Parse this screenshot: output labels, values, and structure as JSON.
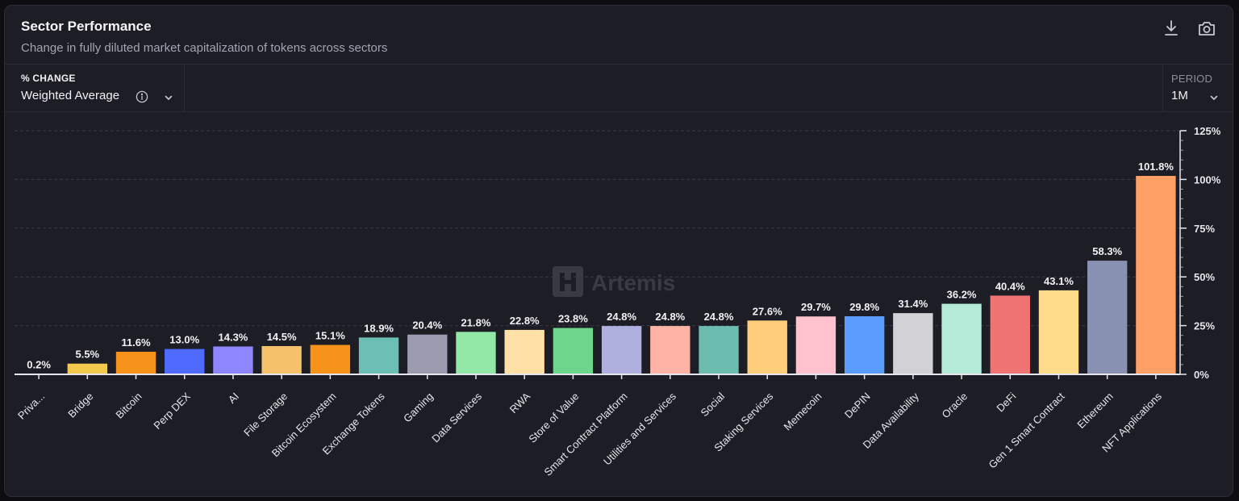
{
  "header": {
    "title": "Sector Performance",
    "subtitle": "Change in fully diluted market capitalization of tokens across sectors"
  },
  "controls": {
    "metric_label": "% CHANGE",
    "metric_value": "Weighted Average",
    "period_label": "PERIOD",
    "period_value": "1M"
  },
  "toolbar": {
    "download_icon": "download-icon",
    "camera_icon": "camera-icon"
  },
  "watermark": "Artemis",
  "chart_data": {
    "type": "bar",
    "categories": [
      "Priva...",
      "Bridge",
      "Bitcoin",
      "Perp DEX",
      "AI",
      "File Storage",
      "Bitcoin Ecosystem",
      "Exchange Tokens",
      "Gaming",
      "Data Services",
      "RWA",
      "Store of Value",
      "Smart Contract Platform",
      "Utilities and Services",
      "Social",
      "Staking Services",
      "Memecoin",
      "DePIN",
      "Data Availability",
      "Oracle",
      "DeFi",
      "Gen 1 Smart Contract",
      "Ethereum",
      "NFT Applications"
    ],
    "values": [
      0.2,
      5.5,
      11.6,
      13.0,
      14.3,
      14.5,
      15.1,
      18.9,
      20.4,
      21.8,
      22.8,
      23.8,
      24.8,
      24.8,
      24.8,
      27.6,
      29.7,
      29.8,
      31.4,
      36.2,
      40.4,
      43.1,
      58.3,
      101.8
    ],
    "data_labels": [
      "0.2%",
      "5.5%",
      "11.6%",
      "13.0%",
      "14.3%",
      "14.5%",
      "15.1%",
      "18.9%",
      "20.4%",
      "21.8%",
      "22.8%",
      "23.8%",
      "24.8%",
      "24.8%",
      "24.8%",
      "27.6%",
      "29.7%",
      "29.8%",
      "31.4%",
      "36.2%",
      "40.4%",
      "43.1%",
      "58.3%",
      "101.8%"
    ],
    "colors": [
      "#f2c94c",
      "#f2c94c",
      "#f7931a",
      "#4f6bff",
      "#8e86ff",
      "#f5c26b",
      "#f7931a",
      "#6cbfb5",
      "#9c9cb0",
      "#93e8a8",
      "#ffe0a6",
      "#6dd68c",
      "#b0b0de",
      "#ffb3a4",
      "#6cbcb0",
      "#ffce7a",
      "#ffc1cd",
      "#5b9cff",
      "#d2d2d6",
      "#b3ead8",
      "#ef7373",
      "#ffdc8a",
      "#8891b2",
      "#ffa066"
    ],
    "y_ticks": [
      0,
      25,
      50,
      75,
      100,
      125
    ],
    "y_tick_labels": [
      "0%",
      "25%",
      "50%",
      "75%",
      "100%",
      "125%"
    ],
    "ylim": [
      0,
      125
    ],
    "grid": true,
    "y_axis_position": "right"
  }
}
